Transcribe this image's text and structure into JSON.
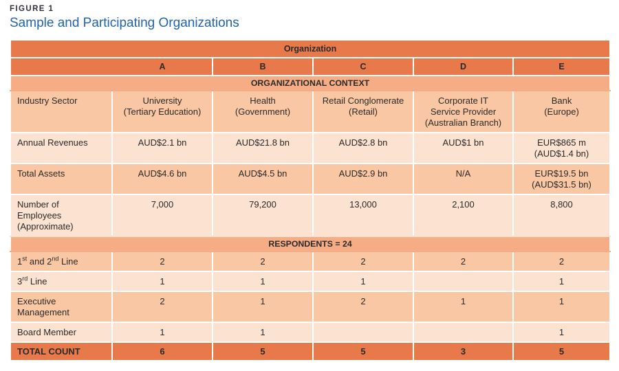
{
  "figure": {
    "label": "FIGURE 1",
    "title": "Sample and Participating Organizations"
  },
  "table": {
    "org_header": "Organization",
    "columns": [
      "A",
      "B",
      "C",
      "D",
      "E"
    ],
    "sections": [
      {
        "header": "ORGANIZATIONAL CONTEXT",
        "rows": [
          {
            "label": "Industry Sector",
            "values": [
              "University\n(Tertiary Education)",
              "Health\n(Government)",
              "Retail Conglomerate\n(Retail)",
              "Corporate IT\nService Provider\n(Australian Branch)",
              "Bank\n(Europe)"
            ]
          },
          {
            "label": "Annual Revenues",
            "values": [
              "AUD$2.1 bn",
              "AUD$21.8 bn",
              "AUD$2.8 bn",
              "AUD$1 bn",
              "EUR$865 m\n(AUD$1.4 bn)"
            ]
          },
          {
            "label": "Total Assets",
            "values": [
              "AUD$4.6 bn",
              "AUD$4.5 bn",
              "AUD$2.9 bn",
              "N/A",
              "EUR$19.5 bn\n(AUD$31.5 bn)"
            ]
          },
          {
            "label": "Number of\nEmployees\n(Approximate)",
            "values": [
              "7,000",
              "79,200",
              "13,000",
              "2,100",
              "8,800"
            ]
          }
        ]
      },
      {
        "header": "RESPONDENTS = 24",
        "rows": [
          {
            "label": "1st and 2nd Line",
            "values": [
              "2",
              "2",
              "2",
              "2",
              "2"
            ]
          },
          {
            "label": "3rd Line",
            "values": [
              "1",
              "1",
              "1",
              "",
              "1"
            ]
          },
          {
            "label": "Executive\nManagement",
            "values": [
              "2",
              "1",
              "2",
              "1",
              "1"
            ]
          },
          {
            "label": "Board Member",
            "values": [
              "1",
              "1",
              "",
              "",
              "1"
            ]
          }
        ]
      }
    ],
    "total_row": {
      "label": "TOTAL COUNT",
      "values": [
        "6",
        "5",
        "5",
        "3",
        "5"
      ]
    }
  },
  "colors": {
    "bar_orange": "#E8794A",
    "section_peach": "#F6AD85",
    "row_dark": "#F9C7A3",
    "row_light": "#FCE2D1",
    "title_navy": "#32323C",
    "subtitle_blue": "#2164AE",
    "cell_text": "#2A2A2A"
  }
}
